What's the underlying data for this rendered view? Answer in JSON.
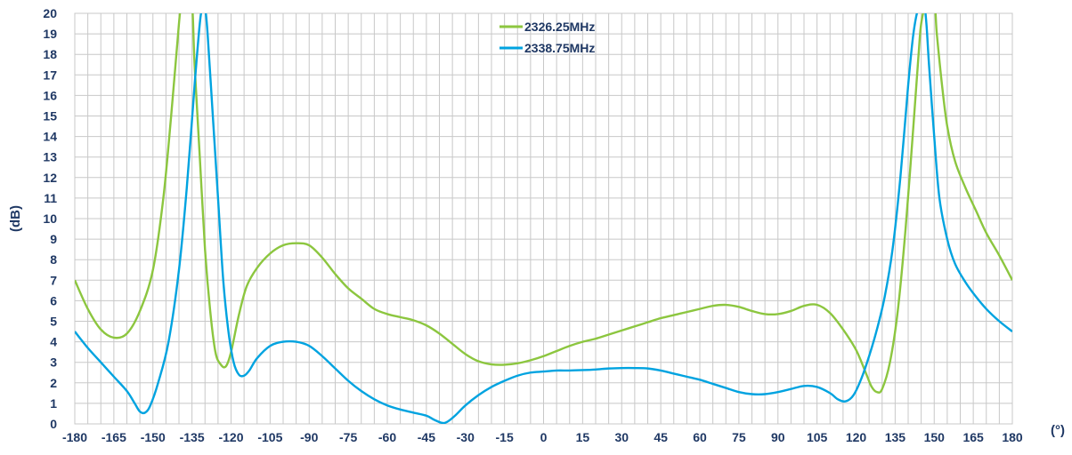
{
  "chart_data": {
    "type": "line",
    "xlabel": "(°)",
    "ylabel": "(dB)",
    "xlim": [
      -180,
      180
    ],
    "ylim": [
      0,
      20
    ],
    "xticks": [
      "-180",
      "-165",
      "-150",
      "-135",
      "-120",
      "-105",
      "-90",
      "-75",
      "-60",
      "-45",
      "-30",
      "-15",
      "0",
      "15",
      "30",
      "45",
      "60",
      "75",
      "90",
      "105",
      "120",
      "135",
      "150",
      "165",
      "180"
    ],
    "yticks": [
      "0",
      "1",
      "2",
      "3",
      "4",
      "5",
      "6",
      "7",
      "8",
      "9",
      "10",
      "11",
      "12",
      "13",
      "14",
      "15",
      "16",
      "17",
      "18",
      "19",
      "20"
    ],
    "grid": true,
    "legend_position": "top-center",
    "series": [
      {
        "name": "2326.25MHz",
        "color": "#8cc63f",
        "points": [
          [
            -180,
            7.0
          ],
          [
            -175,
            5.6
          ],
          [
            -170,
            4.6
          ],
          [
            -165,
            4.2
          ],
          [
            -160,
            4.4
          ],
          [
            -155,
            5.5
          ],
          [
            -150,
            7.5
          ],
          [
            -146,
            11.0
          ],
          [
            -143,
            15.0
          ],
          [
            -140,
            19.5
          ],
          [
            -139,
            20.5
          ],
          [
            -137,
            21
          ],
          [
            -135,
            20.5
          ],
          [
            -134,
            17.5
          ],
          [
            -132,
            13.0
          ],
          [
            -130,
            8.5
          ],
          [
            -128,
            5.5
          ],
          [
            -126,
            3.5
          ],
          [
            -124,
            2.9
          ],
          [
            -122,
            2.8
          ],
          [
            -120,
            3.5
          ],
          [
            -117,
            5.3
          ],
          [
            -114,
            6.7
          ],
          [
            -110,
            7.6
          ],
          [
            -105,
            8.3
          ],
          [
            -100,
            8.7
          ],
          [
            -95,
            8.8
          ],
          [
            -90,
            8.7
          ],
          [
            -85,
            8.1
          ],
          [
            -80,
            7.3
          ],
          [
            -75,
            6.6
          ],
          [
            -70,
            6.1
          ],
          [
            -65,
            5.6
          ],
          [
            -60,
            5.35
          ],
          [
            -55,
            5.2
          ],
          [
            -50,
            5.05
          ],
          [
            -45,
            4.8
          ],
          [
            -40,
            4.4
          ],
          [
            -35,
            3.9
          ],
          [
            -30,
            3.4
          ],
          [
            -25,
            3.05
          ],
          [
            -20,
            2.9
          ],
          [
            -15,
            2.88
          ],
          [
            -10,
            2.95
          ],
          [
            -5,
            3.1
          ],
          [
            0,
            3.3
          ],
          [
            5,
            3.55
          ],
          [
            10,
            3.8
          ],
          [
            15,
            4.0
          ],
          [
            20,
            4.15
          ],
          [
            25,
            4.35
          ],
          [
            30,
            4.55
          ],
          [
            35,
            4.75
          ],
          [
            40,
            4.95
          ],
          [
            45,
            5.15
          ],
          [
            50,
            5.3
          ],
          [
            55,
            5.45
          ],
          [
            60,
            5.6
          ],
          [
            65,
            5.75
          ],
          [
            70,
            5.8
          ],
          [
            75,
            5.7
          ],
          [
            80,
            5.5
          ],
          [
            85,
            5.35
          ],
          [
            90,
            5.35
          ],
          [
            95,
            5.5
          ],
          [
            100,
            5.75
          ],
          [
            105,
            5.8
          ],
          [
            110,
            5.4
          ],
          [
            115,
            4.6
          ],
          [
            120,
            3.6
          ],
          [
            124,
            2.4
          ],
          [
            126,
            1.8
          ],
          [
            128,
            1.55
          ],
          [
            130,
            1.7
          ],
          [
            133,
            3.0
          ],
          [
            136,
            5.5
          ],
          [
            139,
            9.5
          ],
          [
            142,
            14.5
          ],
          [
            144,
            18.0
          ],
          [
            145,
            19.5
          ],
          [
            147,
            20.5
          ],
          [
            150,
            20.5
          ],
          [
            151,
            19.0
          ],
          [
            153,
            16.5
          ],
          [
            155,
            14.5
          ],
          [
            158,
            12.8
          ],
          [
            162,
            11.5
          ],
          [
            166,
            10.4
          ],
          [
            170,
            9.3
          ],
          [
            175,
            8.2
          ],
          [
            180,
            7.0
          ]
        ]
      },
      {
        "name": "2338.75MHz",
        "color": "#00a3e0",
        "points": [
          [
            -180,
            4.5
          ],
          [
            -175,
            3.7
          ],
          [
            -170,
            3.0
          ],
          [
            -165,
            2.3
          ],
          [
            -160,
            1.6
          ],
          [
            -157,
            1.0
          ],
          [
            -155,
            0.6
          ],
          [
            -153,
            0.55
          ],
          [
            -151,
            0.9
          ],
          [
            -148,
            2.0
          ],
          [
            -144,
            4.0
          ],
          [
            -140,
            7.5
          ],
          [
            -137,
            11.5
          ],
          [
            -134,
            16.5
          ],
          [
            -132,
            19.5
          ],
          [
            -131,
            20.3
          ],
          [
            -130,
            20.3
          ],
          [
            -129,
            19.0
          ],
          [
            -127,
            15.0
          ],
          [
            -125,
            11.0
          ],
          [
            -123,
            7.0
          ],
          [
            -121,
            4.5
          ],
          [
            -119,
            3.0
          ],
          [
            -117,
            2.4
          ],
          [
            -115,
            2.35
          ],
          [
            -113,
            2.6
          ],
          [
            -110,
            3.2
          ],
          [
            -105,
            3.8
          ],
          [
            -100,
            4.0
          ],
          [
            -95,
            4.0
          ],
          [
            -90,
            3.8
          ],
          [
            -85,
            3.3
          ],
          [
            -80,
            2.7
          ],
          [
            -75,
            2.1
          ],
          [
            -70,
            1.6
          ],
          [
            -65,
            1.2
          ],
          [
            -60,
            0.9
          ],
          [
            -55,
            0.7
          ],
          [
            -50,
            0.55
          ],
          [
            -45,
            0.4
          ],
          [
            -42,
            0.2
          ],
          [
            -39,
            0.05
          ],
          [
            -37,
            0.1
          ],
          [
            -34,
            0.4
          ],
          [
            -30,
            0.9
          ],
          [
            -25,
            1.4
          ],
          [
            -20,
            1.8
          ],
          [
            -15,
            2.1
          ],
          [
            -10,
            2.35
          ],
          [
            -5,
            2.5
          ],
          [
            0,
            2.55
          ],
          [
            5,
            2.6
          ],
          [
            10,
            2.6
          ],
          [
            15,
            2.62
          ],
          [
            20,
            2.65
          ],
          [
            25,
            2.7
          ],
          [
            30,
            2.72
          ],
          [
            35,
            2.72
          ],
          [
            40,
            2.7
          ],
          [
            45,
            2.6
          ],
          [
            50,
            2.45
          ],
          [
            55,
            2.3
          ],
          [
            60,
            2.15
          ],
          [
            65,
            1.95
          ],
          [
            70,
            1.75
          ],
          [
            75,
            1.55
          ],
          [
            80,
            1.45
          ],
          [
            85,
            1.45
          ],
          [
            90,
            1.55
          ],
          [
            95,
            1.7
          ],
          [
            100,
            1.85
          ],
          [
            105,
            1.8
          ],
          [
            110,
            1.5
          ],
          [
            113,
            1.2
          ],
          [
            116,
            1.1
          ],
          [
            119,
            1.4
          ],
          [
            122,
            2.2
          ],
          [
            125,
            3.3
          ],
          [
            128,
            4.6
          ],
          [
            131,
            6.2
          ],
          [
            134,
            8.5
          ],
          [
            137,
            12.0
          ],
          [
            140,
            16.5
          ],
          [
            142,
            19.0
          ],
          [
            144,
            20.3
          ],
          [
            146,
            20.5
          ],
          [
            147,
            19.5
          ],
          [
            148,
            17.5
          ],
          [
            150,
            14.0
          ],
          [
            152,
            11.0
          ],
          [
            155,
            9.0
          ],
          [
            158,
            7.8
          ],
          [
            162,
            6.9
          ],
          [
            166,
            6.2
          ],
          [
            170,
            5.6
          ],
          [
            175,
            5.0
          ],
          [
            180,
            4.5
          ]
        ]
      }
    ]
  }
}
